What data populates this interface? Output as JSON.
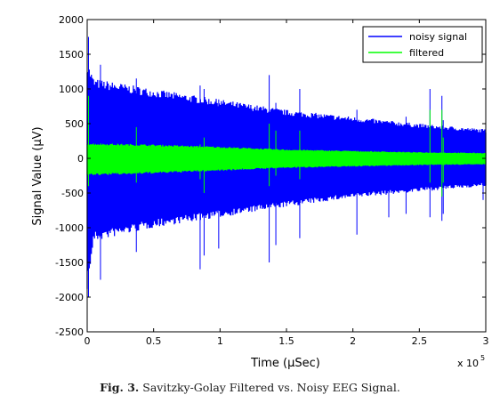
{
  "chart_data": {
    "type": "line",
    "xlabel": "Time (μSec)",
    "ylabel": "Signal Value (μV)",
    "x_multiplier": "x 10",
    "x_multiplier_exp": "5",
    "xlim": [
      0,
      3
    ],
    "ylim": [
      -2500,
      2000
    ],
    "xticks": [
      "0",
      "0.5",
      "1",
      "1.5",
      "2",
      "2.5",
      "3"
    ],
    "yticks": [
      "2000",
      "1500",
      "1000",
      "500",
      "0",
      "-500",
      "-1000",
      "-1500",
      "-2000",
      "-2500"
    ],
    "grid": false,
    "legend_position": "top-right",
    "series": [
      {
        "name": "noisy signal",
        "color": "#0000ff",
        "envelope_x": [
          0,
          0.05,
          0.5,
          1.0,
          1.5,
          2.0,
          2.5,
          3.0
        ],
        "envelope_upper": [
          1400,
          1150,
          1000,
          850,
          700,
          600,
          500,
          420
        ],
        "envelope_lower": [
          -1900,
          -1200,
          -1000,
          -850,
          -700,
          -570,
          -480,
          -400
        ],
        "spikes": [
          {
            "x": 0.01,
            "top": 1750,
            "bottom": -2000
          },
          {
            "x": 0.1,
            "top": 1350,
            "bottom": -1750
          },
          {
            "x": 0.37,
            "top": 1150,
            "bottom": -1350
          },
          {
            "x": 0.85,
            "top": 1050,
            "bottom": -1600
          },
          {
            "x": 0.88,
            "top": 1000,
            "bottom": -1400
          },
          {
            "x": 0.99,
            "top": 850,
            "bottom": -1300
          },
          {
            "x": 1.37,
            "top": 1200,
            "bottom": -1500
          },
          {
            "x": 1.42,
            "top": 800,
            "bottom": -1250
          },
          {
            "x": 1.6,
            "top": 1000,
            "bottom": -1150
          },
          {
            "x": 2.03,
            "top": 700,
            "bottom": -1100
          },
          {
            "x": 2.27,
            "top": 500,
            "bottom": -850
          },
          {
            "x": 2.4,
            "top": 600,
            "bottom": -800
          },
          {
            "x": 2.58,
            "top": 1000,
            "bottom": -850
          },
          {
            "x": 2.67,
            "top": 900,
            "bottom": -900
          },
          {
            "x": 2.68,
            "top": 550,
            "bottom": -800
          },
          {
            "x": 2.98,
            "top": 400,
            "bottom": -600
          }
        ]
      },
      {
        "name": "filtered",
        "color": "#00ff00",
        "envelope_x": [
          0,
          0.5,
          1.0,
          1.5,
          2.0,
          2.5,
          3.0
        ],
        "envelope_upper": [
          220,
          200,
          170,
          130,
          110,
          90,
          80
        ],
        "envelope_lower": [
          -250,
          -220,
          -180,
          -140,
          -120,
          -100,
          -90
        ],
        "spikes": [
          {
            "x": 0.01,
            "top": 900,
            "bottom": -400
          },
          {
            "x": 0.37,
            "top": 450,
            "bottom": -350
          },
          {
            "x": 0.85,
            "top": 200,
            "bottom": -300
          },
          {
            "x": 0.88,
            "top": 300,
            "bottom": -500
          },
          {
            "x": 1.37,
            "top": 500,
            "bottom": -400
          },
          {
            "x": 1.42,
            "top": 400,
            "bottom": -250
          },
          {
            "x": 1.6,
            "top": 400,
            "bottom": -300
          },
          {
            "x": 2.58,
            "top": 700,
            "bottom": -350
          },
          {
            "x": 2.67,
            "top": 700,
            "bottom": -550
          },
          {
            "x": 2.68,
            "top": 300,
            "bottom": -350
          }
        ]
      }
    ]
  },
  "caption": {
    "label": "Fig. 3.",
    "text": "Savitzky-Golay Filtered vs. Noisy EEG Signal."
  }
}
